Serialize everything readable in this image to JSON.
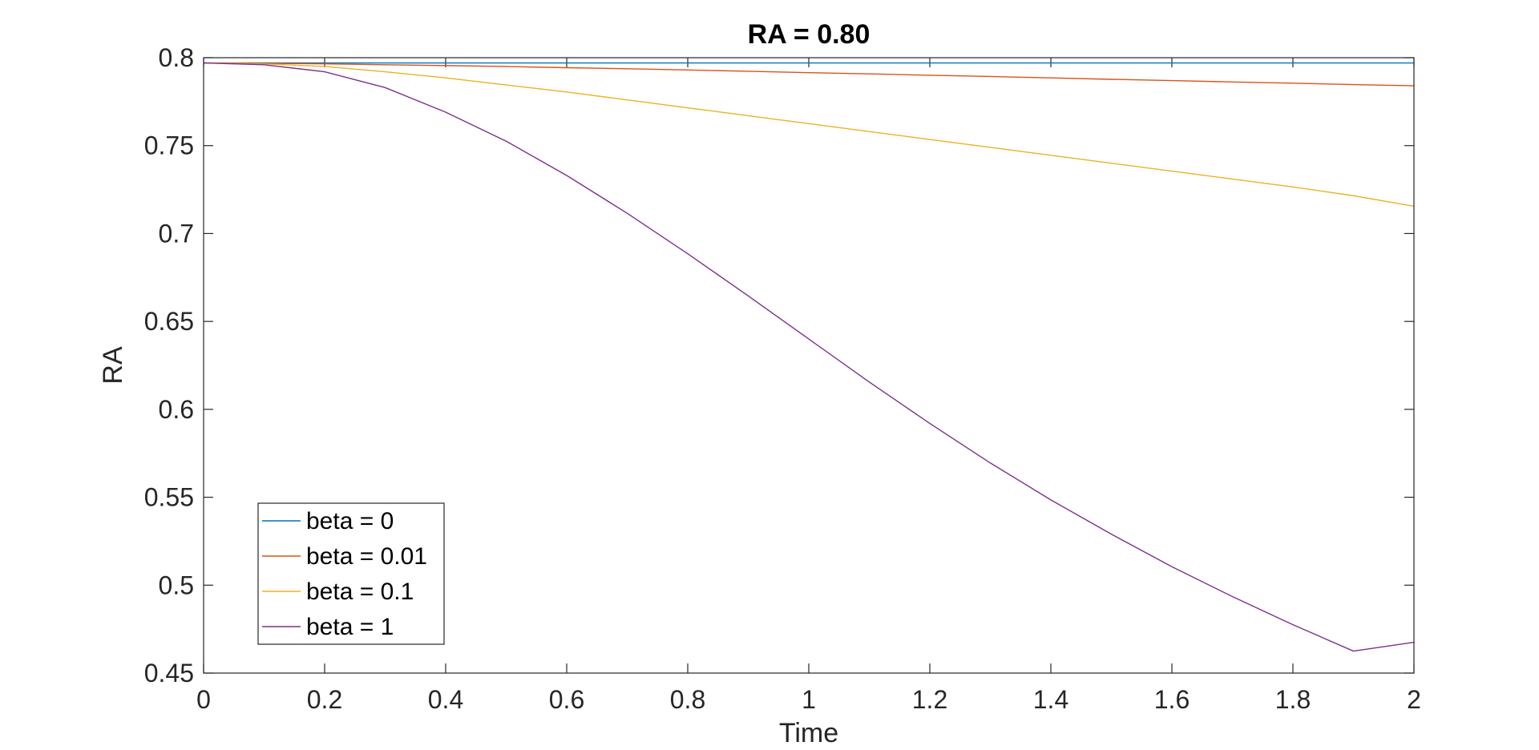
{
  "chart_data": {
    "type": "line",
    "title": "RA = 0.80",
    "xlabel": "Time",
    "ylabel": "RA",
    "xlim": [
      0,
      2
    ],
    "ylim": [
      0.45,
      0.8
    ],
    "xticks": [
      0,
      0.2,
      0.4,
      0.6,
      0.8,
      1,
      1.2,
      1.4,
      1.6,
      1.8,
      2
    ],
    "xtick_labels": [
      "0",
      "0.2",
      "0.4",
      "0.6",
      "0.8",
      "1",
      "1.2",
      "1.4",
      "1.6",
      "1.8",
      "2"
    ],
    "yticks": [
      0.45,
      0.5,
      0.55,
      0.6,
      0.65,
      0.7,
      0.75,
      0.8
    ],
    "ytick_labels": [
      "0.45",
      "0.5",
      "0.55",
      "0.6",
      "0.65",
      "0.7",
      "0.75",
      "0.8"
    ],
    "grid": false,
    "legend_position": "bottom-left",
    "x": [
      0,
      0.1,
      0.2,
      0.3,
      0.4,
      0.5,
      0.6,
      0.7,
      0.8,
      0.9,
      1.0,
      1.1,
      1.2,
      1.3,
      1.4,
      1.5,
      1.6,
      1.7,
      1.8,
      1.9,
      2.0
    ],
    "series": [
      {
        "name": "beta = 0",
        "color": "#0072BD",
        "values": [
          0.797,
          0.797,
          0.797,
          0.797,
          0.797,
          0.797,
          0.797,
          0.797,
          0.797,
          0.797,
          0.797,
          0.797,
          0.797,
          0.797,
          0.797,
          0.797,
          0.797,
          0.797,
          0.797,
          0.797,
          0.797
        ]
      },
      {
        "name": "beta = 0.01",
        "color": "#D95319",
        "values": [
          0.797,
          0.7968,
          0.7965,
          0.796,
          0.7955,
          0.795,
          0.7943,
          0.7937,
          0.793,
          0.7923,
          0.7915,
          0.7908,
          0.79,
          0.7893,
          0.7885,
          0.7877,
          0.787,
          0.7862,
          0.7855,
          0.7847,
          0.784
        ]
      },
      {
        "name": "beta = 0.1",
        "color": "#EDB120",
        "values": [
          0.797,
          0.7965,
          0.795,
          0.792,
          0.7885,
          0.7845,
          0.7805,
          0.776,
          0.7715,
          0.767,
          0.7625,
          0.758,
          0.7535,
          0.749,
          0.7445,
          0.74,
          0.7355,
          0.731,
          0.7265,
          0.7215,
          0.7155
        ]
      },
      {
        "name": "beta = 1",
        "color": "#7E2F8E",
        "values": [
          0.797,
          0.796,
          0.792,
          0.783,
          0.769,
          0.7525,
          0.733,
          0.7115,
          0.6885,
          0.6645,
          0.64,
          0.6155,
          0.592,
          0.5695,
          0.5485,
          0.529,
          0.5105,
          0.4935,
          0.4775,
          0.4625,
          0.4675
        ]
      }
    ]
  }
}
